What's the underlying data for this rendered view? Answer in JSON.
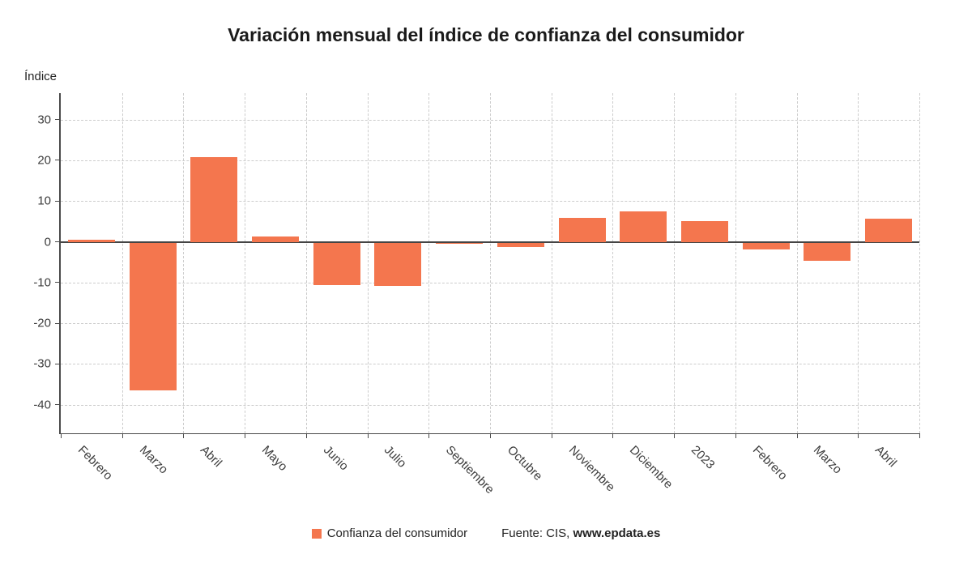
{
  "title": "Variación mensual del índice de confianza del consumidor",
  "y_axis_label": "Índice",
  "legend": {
    "label": "Confianza del consumidor",
    "color": "#f4764e"
  },
  "source": {
    "prefix": "Fuente: CIS, ",
    "bold": "www.epdata.es"
  },
  "colors": {
    "bar": "#f4764e",
    "grid": "#cccccc",
    "axis": "#4a4a4a"
  },
  "chart_data": {
    "type": "bar",
    "title": "Variación mensual del índice de confianza del consumidor",
    "ylabel": "Índice",
    "categories": [
      "Febrero",
      "Marzo",
      "Abril",
      "Mayo",
      "Junio",
      "Julio",
      "Septiembre",
      "Octubre",
      "Noviembre",
      "Diciembre",
      "2023",
      "Febrero",
      "Marzo",
      "Abril"
    ],
    "values": [
      0.5,
      -36.2,
      20.7,
      1.4,
      -10.4,
      -10.6,
      -0.3,
      -1.0,
      5.9,
      7.5,
      5.0,
      -1.6,
      -4.4,
      5.6
    ],
    "yticks": [
      30,
      20,
      10,
      0,
      -10,
      -20,
      -30,
      -40
    ],
    "ylim": [
      -47,
      36.5
    ],
    "grid": true,
    "bar_color": "#f4764e",
    "legend_label": "Confianza del consumidor",
    "legend_position": "bottom"
  }
}
